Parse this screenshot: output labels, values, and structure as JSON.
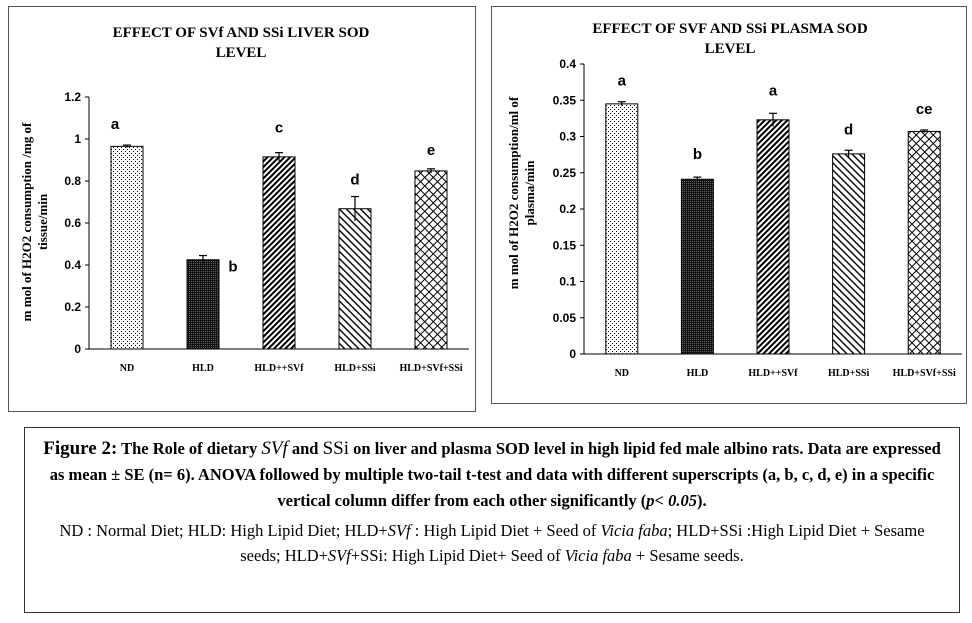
{
  "colors": {
    "bar_stroke": "#000000",
    "bar_dark": "#111111",
    "axis": "#000000"
  },
  "chart_data": [
    {
      "type": "bar",
      "title_line1": "EFFECT OF SVf AND SSi  LIVER SOD",
      "title_line2": "LEVEL",
      "ylabel_line1": "m mol of H2O2 consumption /mg of",
      "ylabel_line2": "tissue/min",
      "xlabel": "",
      "categories": [
        "ND",
        "HLD",
        "HLD++SVf",
        "HLD+SSi",
        "HLD+SVf+SSi"
      ],
      "values": [
        0.965,
        0.425,
        0.915,
        0.668,
        0.848
      ],
      "errors": [
        0.006,
        0.02,
        0.02,
        0.058,
        0.01
      ],
      "superscripts": [
        "a",
        "b",
        "c",
        "d",
        "e"
      ],
      "patterns": [
        "dots-light",
        "dots-dense",
        "diag-up",
        "diag-down",
        "diag-cross"
      ],
      "ylim": [
        0,
        1.2
      ],
      "yticks": [
        "0",
        "0.2",
        "0.4",
        "0.6",
        "0.8",
        "1",
        "1.2"
      ],
      "grid": false,
      "legend": "none"
    },
    {
      "type": "bar",
      "title_line1": "EFFECT OF SVF AND SSi  PLASMA  SOD",
      "title_line2": "LEVEL",
      "ylabel_line1": "m mol of H2O2 consumption/ml of",
      "ylabel_line2": "plasma/min",
      "xlabel": "",
      "categories": [
        "ND",
        "HLD",
        "HLD++SVf",
        "HLD+SSi",
        "HLD+SVf+SSi"
      ],
      "values": [
        0.345,
        0.241,
        0.323,
        0.276,
        0.307
      ],
      "errors": [
        0.003,
        0.003,
        0.009,
        0.005,
        0.002
      ],
      "superscripts": [
        "a",
        "b",
        "a",
        "d",
        "ce"
      ],
      "patterns": [
        "dots-light",
        "dots-dense",
        "diag-up",
        "diag-down",
        "diag-cross"
      ],
      "ylim": [
        0,
        0.4
      ],
      "yticks": [
        "0",
        "0.05",
        "0.1",
        "0.15",
        "0.2",
        "0.25",
        "0.3",
        "0.35",
        "0.4"
      ],
      "grid": false,
      "legend": "none"
    }
  ],
  "caption": {
    "figure_label": "Figure 2:",
    "line1_a": " The Role of dietary ",
    "svf": "SVf",
    "line1_b": " and ",
    "ssi": "SSi",
    "line1_c": " on liver and plasma SOD level in high lipid fed male albino rats. Data are expressed as mean ± SE (n= 6). ANOVA followed by multiple two-tail t-test and data with different superscripts (a, b, c, d, e) in a specific vertical column  differ from each other significantly (",
    "p": "p",
    "p_rest": "< 0.05",
    "line1_end": ").",
    "abbrev_1": "ND : Normal Diet; HLD:  High Lipid Diet; HLD+",
    "abbrev_2": " : High Lipid Diet + Seed of ",
    "vicia": "Vicia faba",
    "abbrev_3": "; HLD+",
    "abbrev_4": "  :High Lipid Diet + Sesame seeds; HLD+",
    "abbrev_plus": "+",
    "abbrev_5": ":  High Lipid Diet+ Seed of ",
    "abbrev_6": " + Sesame seeds."
  }
}
